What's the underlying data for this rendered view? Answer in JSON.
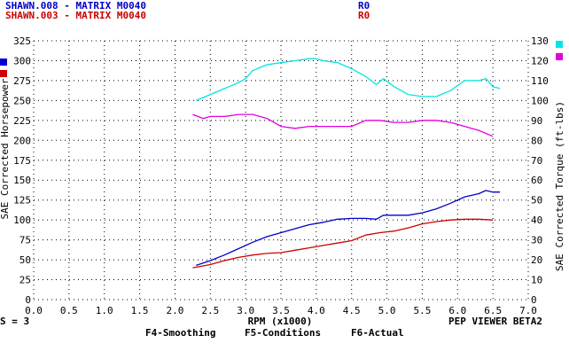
{
  "header": {
    "runs": [
      {
        "name": "SHAWN.008 - MATRIX M0040",
        "tag": "R0",
        "color": "#0000cc"
      },
      {
        "name": "SHAWN.003 - MATRIX M0040",
        "tag": "R0",
        "color": "#cc0000"
      }
    ]
  },
  "footer": {
    "smoothing_left": "S = 3",
    "xlabel": "RPM (x1000)",
    "menu": [
      "F4-Smoothing",
      "F5-Conditions",
      "F6-Actual"
    ],
    "viewer": "PEP VIEWER BETA2"
  },
  "colors": {
    "hp_run1": "#0000cc",
    "hp_run2": "#cc0000",
    "torque_run1": "#00e5e5",
    "torque_run2": "#e000e0",
    "grid": "#000000"
  },
  "chart_data": {
    "type": "line",
    "title": "",
    "xlabel": "RPM (x1000)",
    "ylabel": "SAE Corrected Horsepower",
    "y2label": "SAE Corrected Torque (ft-lbs)",
    "xlim": [
      0,
      7.0
    ],
    "ylim": [
      0,
      325
    ],
    "y2lim": [
      0,
      130
    ],
    "x_ticks": [
      "0.0",
      "0.5",
      "1.0",
      "1.5",
      "2.0",
      "2.5",
      "3.0",
      "3.5",
      "4.0",
      "4.5",
      "5.0",
      "5.5",
      "6.0",
      "6.5",
      "7.0"
    ],
    "y_ticks": [
      "0",
      "25",
      "50",
      "75",
      "100",
      "125",
      "150",
      "175",
      "200",
      "225",
      "250",
      "275",
      "300",
      "325"
    ],
    "y2_ticks": [
      "0",
      "10",
      "20",
      "30",
      "40",
      "50",
      "60",
      "70",
      "80",
      "90",
      "100",
      "110",
      "120",
      "130"
    ],
    "grid": true,
    "series": [
      {
        "axis": "left",
        "color": "#0000cc",
        "x": [
          2.3,
          2.5,
          2.7,
          2.9,
          3.1,
          3.3,
          3.5,
          3.7,
          3.9,
          4.1,
          4.3,
          4.5,
          4.7,
          4.85,
          4.95,
          5.1,
          5.3,
          5.5,
          5.7,
          5.9,
          6.1,
          6.3,
          6.4,
          6.5,
          6.6
        ],
        "y": [
          43,
          49,
          56,
          64,
          72,
          79,
          84,
          89,
          94,
          97,
          101,
          102,
          102,
          101,
          106,
          106,
          106,
          109,
          114,
          121,
          129,
          133,
          137,
          135,
          135
        ]
      },
      {
        "axis": "left",
        "color": "#cc0000",
        "x": [
          2.25,
          2.5,
          2.7,
          2.9,
          3.1,
          3.3,
          3.5,
          3.7,
          3.9,
          4.1,
          4.3,
          4.5,
          4.7,
          4.9,
          5.1,
          5.3,
          5.5,
          5.7,
          5.9,
          6.1,
          6.3,
          6.5
        ],
        "y": [
          40,
          44,
          49,
          53,
          56,
          58,
          59,
          62,
          65,
          68,
          71,
          74,
          81,
          84,
          86,
          90,
          95,
          98,
          100,
          101,
          101,
          100
        ]
      },
      {
        "axis": "right",
        "color": "#00e5e5",
        "x": [
          2.3,
          2.5,
          2.7,
          2.9,
          3.0,
          3.1,
          3.3,
          3.5,
          3.7,
          3.9,
          4.0,
          4.1,
          4.3,
          4.5,
          4.7,
          4.85,
          4.95,
          5.1,
          5.3,
          5.5,
          5.7,
          5.9,
          6.1,
          6.3,
          6.4,
          6.5,
          6.6
        ],
        "y": [
          100,
          103,
          106,
          109,
          111,
          115,
          118,
          119,
          120,
          121,
          121,
          120,
          119,
          116,
          112,
          108,
          111,
          107,
          103,
          102,
          102,
          105,
          110,
          110,
          111,
          107,
          106
        ]
      },
      {
        "axis": "right",
        "color": "#e000e0",
        "x": [
          2.25,
          2.4,
          2.5,
          2.7,
          2.9,
          3.1,
          3.3,
          3.5,
          3.7,
          3.9,
          4.1,
          4.3,
          4.5,
          4.7,
          4.9,
          5.1,
          5.3,
          5.5,
          5.7,
          5.9,
          6.1,
          6.3,
          6.5
        ],
        "y": [
          93,
          91,
          92,
          92,
          93,
          93,
          91,
          87,
          86,
          87,
          87,
          87,
          87,
          90,
          90,
          89,
          89,
          90,
          90,
          89,
          87,
          85,
          82
        ]
      }
    ]
  }
}
